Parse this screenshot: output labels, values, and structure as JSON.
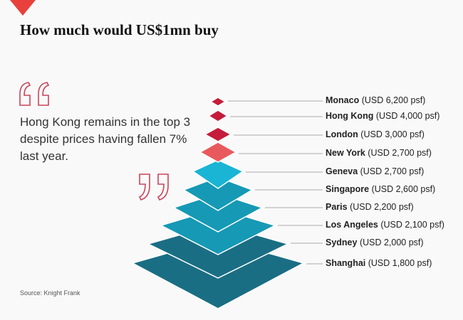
{
  "title": "How much would US$1mn buy",
  "quote": "Hong Kong remains in the top 3 despite prices having fallen 7% last year.",
  "source": "Source: Knight Frank",
  "colors": {
    "accent": "#e8413c",
    "quote_mark": "#c9455a",
    "dark_red": "#c41c3a",
    "coral": "#e8595e",
    "teal_light": "#1ab4d5",
    "teal_mid": "#1699b5",
    "teal_dark": "#1a6e84"
  },
  "chart_data": {
    "type": "bar",
    "title": "How much would US$1mn buy",
    "categories": [
      "Monaco",
      "Hong Kong",
      "London",
      "New York",
      "Geneva",
      "Singapore",
      "Paris",
      "Los Angeles",
      "Sydney",
      "Shanghai"
    ],
    "values": [
      6200,
      4000,
      3000,
      2700,
      2700,
      2600,
      2200,
      2100,
      2000,
      1800
    ],
    "labels": [
      {
        "city": "Monaco",
        "detail": "(USD 6,200 psf)"
      },
      {
        "city": "Hong Kong",
        "detail": "(USD 4,000 psf)"
      },
      {
        "city": "London",
        "detail": "(USD 3,000 psf)"
      },
      {
        "city": "New York",
        "detail": "(USD 2,700 psf)"
      },
      {
        "city": "Geneva",
        "detail": "(USD 2,700 psf)"
      },
      {
        "city": "Singapore",
        "detail": "(USD 2,600 psf)"
      },
      {
        "city": "Paris",
        "detail": "(USD 2,200 psf)"
      },
      {
        "city": "Los Angeles",
        "detail": "(USD 2,100 psf)"
      },
      {
        "city": "Sydney",
        "detail": "(USD 2,000 psf)"
      },
      {
        "city": "Shanghai",
        "detail": "(USD 1,800 psf)"
      }
    ]
  }
}
